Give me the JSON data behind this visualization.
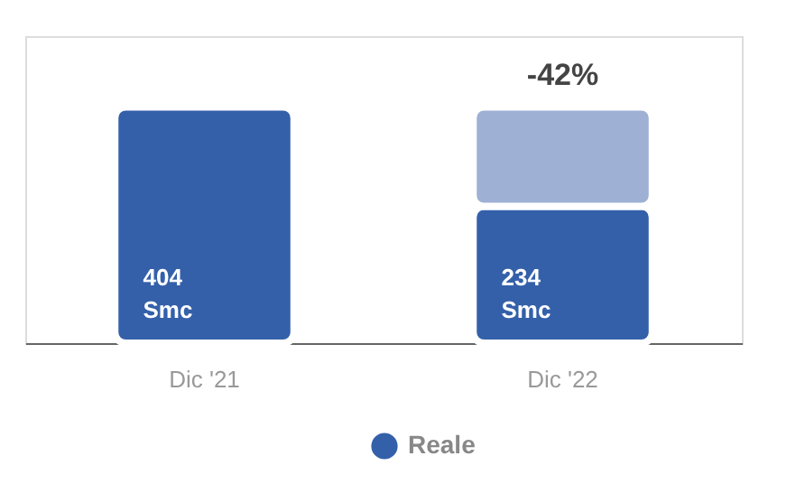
{
  "chart_data": {
    "type": "bar",
    "stacked": true,
    "categories": [
      "Dic '21",
      "Dic '22"
    ],
    "series": [
      {
        "name": "Reale",
        "color": "#3460aa",
        "values": [
          404,
          234
        ],
        "value_labels": [
          "404 Smc",
          "234 Smc"
        ]
      },
      {
        "color": "#9eb0d4",
        "values": [
          null,
          170
        ]
      }
    ],
    "annotations": [
      "-42%"
    ],
    "legend": "bottom",
    "marker": "circle",
    "grid": false,
    "tick_labels": "x"
  }
}
